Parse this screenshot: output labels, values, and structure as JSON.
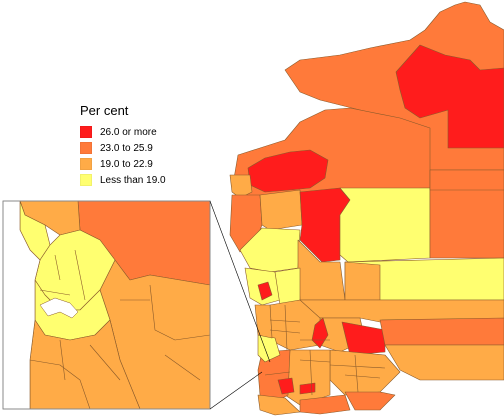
{
  "legend": {
    "title": "Per cent",
    "items": [
      {
        "label": "26.0 or more",
        "color": "#ff1c1c"
      },
      {
        "label": "23.0 to 25.9",
        "color": "#ff7a3a"
      },
      {
        "label": "19.0 to 22.9",
        "color": "#ffab47"
      },
      {
        "label": "Less than 19.0",
        "color": "#ffff70"
      }
    ]
  },
  "colors": {
    "boundary": "#8a5a2a",
    "water": "#ffffff",
    "inset_frame": "#888888"
  }
}
